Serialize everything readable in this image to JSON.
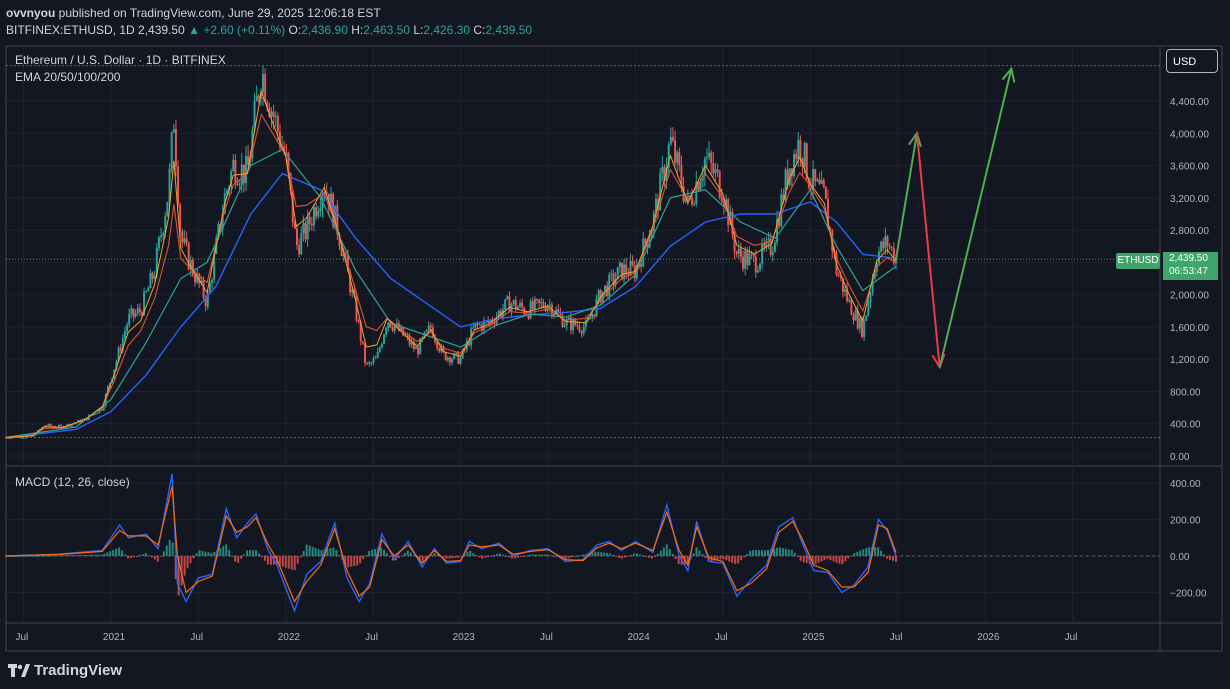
{
  "header": {
    "user": "ovvnyou",
    "published": " published on TradingView.com, June 29, 2025 12:06:18 EST",
    "symbol": "BITFINEX:ETHUSD, 1D",
    "last": "2,439.50",
    "change": "+2.60 (+0.11%)",
    "o_label": "O:",
    "o_val": "2,436.90",
    "h_label": "H:",
    "h_val": "2,463.50",
    "l_label": "L:",
    "l_val": "2,426.30",
    "c_label": "C:",
    "c_val": "2,439.50"
  },
  "currency_button": "USD",
  "ticker_tag": "ETHUSD",
  "price_tag": {
    "price": "2,439.50",
    "countdown": "06:53:47"
  },
  "logo": "TradingView",
  "colors": {
    "background": "#131722",
    "up": "#26a69a",
    "down": "#ef5350",
    "arrow_up": "#4caf50",
    "arrow_down": "#f23645",
    "ema20": "#f0a030",
    "ema50": "#e05038",
    "ema100": "#26a69a",
    "ema200": "#2962ff",
    "macd": "#2962ff",
    "signal": "#ff6d00"
  },
  "chart_data": [
    {
      "type": "line",
      "title": "Ethereum / U.S. Dollar · 1D · BITFINEX",
      "indicator_label": "EMA 20/50/100/200",
      "ylim": [
        0,
        4900
      ],
      "yticks": [
        0,
        400,
        800,
        1200,
        1600,
        2000,
        2400,
        2800,
        3200,
        3600,
        4000,
        4400
      ],
      "ytick_labels": [
        "0.00",
        "400.00",
        "800.00",
        "1,200.00",
        "1,600.00",
        "2,000.00",
        "2,400.00",
        "2,800.00",
        "3,200.00",
        "3,600.00",
        "4,000.00",
        "4,400.00"
      ],
      "x_ticks": [
        {
          "label": "Jul",
          "x": 2020.5
        },
        {
          "label": "2021",
          "x": 2021.0
        },
        {
          "label": "Jul",
          "x": 2021.5
        },
        {
          "label": "2022",
          "x": 2022.0
        },
        {
          "label": "Jul",
          "x": 2022.5
        },
        {
          "label": "2023",
          "x": 2023.0
        },
        {
          "label": "Jul",
          "x": 2023.5
        },
        {
          "label": "2024",
          "x": 2024.0
        },
        {
          "label": "Jul",
          "x": 2024.5
        },
        {
          "label": "2025",
          "x": 2025.0
        },
        {
          "label": "Jul",
          "x": 2025.5
        },
        {
          "label": "2026",
          "x": 2026.0
        },
        {
          "label": "Jul",
          "x": 2026.5
        }
      ],
      "xlim": [
        2020.4,
        2027.0
      ],
      "series_price": [
        [
          2020.4,
          230
        ],
        [
          2020.55,
          240
        ],
        [
          2020.62,
          380
        ],
        [
          2020.72,
          360
        ],
        [
          2020.85,
          450
        ],
        [
          2020.95,
          600
        ],
        [
          2021.02,
          1100
        ],
        [
          2021.1,
          1700
        ],
        [
          2021.17,
          1800
        ],
        [
          2021.25,
          2300
        ],
        [
          2021.33,
          3300
        ],
        [
          2021.36,
          4200
        ],
        [
          2021.4,
          2700
        ],
        [
          2021.45,
          2400
        ],
        [
          2021.55,
          1900
        ],
        [
          2021.58,
          2300
        ],
        [
          2021.65,
          3200
        ],
        [
          2021.7,
          3600
        ],
        [
          2021.78,
          3500
        ],
        [
          2021.86,
          4800
        ],
        [
          2021.92,
          4300
        ],
        [
          2022.0,
          3700
        ],
        [
          2022.06,
          2600
        ],
        [
          2022.12,
          2800
        ],
        [
          2022.22,
          3400
        ],
        [
          2022.3,
          2800
        ],
        [
          2022.4,
          1800
        ],
        [
          2022.46,
          1100
        ],
        [
          2022.52,
          1200
        ],
        [
          2022.58,
          1700
        ],
        [
          2022.67,
          1500
        ],
        [
          2022.75,
          1300
        ],
        [
          2022.83,
          1600
        ],
        [
          2022.9,
          1250
        ],
        [
          2023.0,
          1200
        ],
        [
          2023.08,
          1600
        ],
        [
          2023.16,
          1650
        ],
        [
          2023.28,
          1900
        ],
        [
          2023.38,
          1800
        ],
        [
          2023.5,
          1900
        ],
        [
          2023.6,
          1650
        ],
        [
          2023.72,
          1600
        ],
        [
          2023.8,
          2000
        ],
        [
          2023.92,
          2300
        ],
        [
          2024.0,
          2300
        ],
        [
          2024.1,
          2900
        ],
        [
          2024.2,
          3900
        ],
        [
          2024.3,
          3100
        ],
        [
          2024.4,
          3700
        ],
        [
          2024.5,
          3300
        ],
        [
          2024.58,
          2500
        ],
        [
          2024.68,
          2400
        ],
        [
          2024.78,
          2600
        ],
        [
          2024.88,
          3600
        ],
        [
          2024.94,
          3900
        ],
        [
          2025.0,
          3400
        ],
        [
          2025.08,
          3200
        ],
        [
          2025.15,
          2300
        ],
        [
          2025.22,
          1900
        ],
        [
          2025.3,
          1550
        ],
        [
          2025.38,
          2500
        ],
        [
          2025.44,
          2650
        ],
        [
          2025.49,
          2440
        ]
      ],
      "ema200": [
        [
          2020.4,
          230
        ],
        [
          2020.8,
          330
        ],
        [
          2021.0,
          550
        ],
        [
          2021.2,
          1000
        ],
        [
          2021.4,
          1600
        ],
        [
          2021.6,
          2100
        ],
        [
          2021.8,
          3000
        ],
        [
          2021.98,
          3500
        ],
        [
          2022.2,
          3300
        ],
        [
          2022.4,
          2700
        ],
        [
          2022.6,
          2200
        ],
        [
          2022.8,
          1900
        ],
        [
          2023.0,
          1600
        ],
        [
          2023.2,
          1700
        ],
        [
          2023.4,
          1750
        ],
        [
          2023.6,
          1780
        ],
        [
          2023.8,
          1830
        ],
        [
          2024.0,
          2100
        ],
        [
          2024.2,
          2600
        ],
        [
          2024.4,
          2900
        ],
        [
          2024.6,
          3000
        ],
        [
          2024.8,
          3000
        ],
        [
          2025.0,
          3150
        ],
        [
          2025.15,
          2900
        ],
        [
          2025.3,
          2500
        ],
        [
          2025.49,
          2450
        ]
      ],
      "ema100": [
        [
          2020.4,
          230
        ],
        [
          2020.8,
          360
        ],
        [
          2021.0,
          700
        ],
        [
          2021.2,
          1400
        ],
        [
          2021.4,
          2200
        ],
        [
          2021.55,
          2400
        ],
        [
          2021.8,
          3600
        ],
        [
          2021.98,
          3800
        ],
        [
          2022.2,
          3200
        ],
        [
          2022.4,
          2300
        ],
        [
          2022.6,
          1650
        ],
        [
          2022.8,
          1500
        ],
        [
          2023.0,
          1350
        ],
        [
          2023.2,
          1620
        ],
        [
          2023.4,
          1760
        ],
        [
          2023.6,
          1720
        ],
        [
          2023.8,
          1870
        ],
        [
          2024.0,
          2250
        ],
        [
          2024.2,
          3200
        ],
        [
          2024.4,
          3300
        ],
        [
          2024.6,
          2900
        ],
        [
          2024.8,
          2700
        ],
        [
          2025.0,
          3300
        ],
        [
          2025.15,
          2600
        ],
        [
          2025.3,
          2050
        ],
        [
          2025.49,
          2350
        ]
      ],
      "annotations": {
        "arrow_up_1": {
          "from": [
            2025.49,
            2440
          ],
          "to": [
            2025.61,
            4000
          ]
        },
        "arrow_down": {
          "from": [
            2025.61,
            4000
          ],
          "to": [
            2025.74,
            1100
          ]
        },
        "arrow_up_2": {
          "from": [
            2025.74,
            1100
          ],
          "to": [
            2026.15,
            4800
          ]
        }
      }
    },
    {
      "type": "line",
      "title": "MACD (12, 26, close)",
      "ylim": [
        -350,
        480
      ],
      "yticks": [
        -200,
        0,
        200,
        400
      ],
      "ytick_labels": [
        "−200.00",
        "0.00",
        "200.00",
        "400.00"
      ],
      "macd": [
        [
          2020.4,
          0
        ],
        [
          2020.7,
          10
        ],
        [
          2020.95,
          30
        ],
        [
          2021.05,
          170
        ],
        [
          2021.1,
          100
        ],
        [
          2021.2,
          120
        ],
        [
          2021.27,
          40
        ],
        [
          2021.35,
          450
        ],
        [
          2021.38,
          -150
        ],
        [
          2021.43,
          -250
        ],
        [
          2021.5,
          -120
        ],
        [
          2021.58,
          -100
        ],
        [
          2021.66,
          260
        ],
        [
          2021.72,
          100
        ],
        [
          2021.78,
          180
        ],
        [
          2021.83,
          230
        ],
        [
          2021.9,
          30
        ],
        [
          2021.95,
          -50
        ],
        [
          2022.05,
          -300
        ],
        [
          2022.12,
          -100
        ],
        [
          2022.2,
          -30
        ],
        [
          2022.28,
          180
        ],
        [
          2022.35,
          -120
        ],
        [
          2022.42,
          -250
        ],
        [
          2022.48,
          -150
        ],
        [
          2022.55,
          120
        ],
        [
          2022.62,
          -20
        ],
        [
          2022.7,
          80
        ],
        [
          2022.78,
          -60
        ],
        [
          2022.85,
          40
        ],
        [
          2022.92,
          -40
        ],
        [
          2023.0,
          -30
        ],
        [
          2023.05,
          80
        ],
        [
          2023.12,
          40
        ],
        [
          2023.22,
          70
        ],
        [
          2023.3,
          0
        ],
        [
          2023.4,
          30
        ],
        [
          2023.5,
          40
        ],
        [
          2023.6,
          -30
        ],
        [
          2023.7,
          -20
        ],
        [
          2023.78,
          60
        ],
        [
          2023.85,
          80
        ],
        [
          2023.92,
          30
        ],
        [
          2024.0,
          80
        ],
        [
          2024.1,
          20
        ],
        [
          2024.18,
          280
        ],
        [
          2024.25,
          0
        ],
        [
          2024.3,
          -80
        ],
        [
          2024.35,
          190
        ],
        [
          2024.42,
          -30
        ],
        [
          2024.5,
          -40
        ],
        [
          2024.58,
          -220
        ],
        [
          2024.66,
          -130
        ],
        [
          2024.75,
          -50
        ],
        [
          2024.82,
          160
        ],
        [
          2024.9,
          210
        ],
        [
          2024.95,
          80
        ],
        [
          2025.02,
          -80
        ],
        [
          2025.1,
          -90
        ],
        [
          2025.18,
          -200
        ],
        [
          2025.25,
          -160
        ],
        [
          2025.33,
          -60
        ],
        [
          2025.39,
          200
        ],
        [
          2025.44,
          140
        ],
        [
          2025.49,
          0
        ]
      ],
      "signal": [
        [
          2020.4,
          0
        ],
        [
          2020.7,
          8
        ],
        [
          2020.95,
          25
        ],
        [
          2021.05,
          140
        ],
        [
          2021.1,
          110
        ],
        [
          2021.2,
          110
        ],
        [
          2021.27,
          60
        ],
        [
          2021.35,
          380
        ],
        [
          2021.38,
          0
        ],
        [
          2021.43,
          -200
        ],
        [
          2021.5,
          -140
        ],
        [
          2021.58,
          -110
        ],
        [
          2021.66,
          220
        ],
        [
          2021.72,
          130
        ],
        [
          2021.78,
          160
        ],
        [
          2021.83,
          210
        ],
        [
          2021.9,
          60
        ],
        [
          2021.95,
          -20
        ],
        [
          2022.05,
          -250
        ],
        [
          2022.12,
          -140
        ],
        [
          2022.2,
          -50
        ],
        [
          2022.28,
          150
        ],
        [
          2022.35,
          -80
        ],
        [
          2022.42,
          -220
        ],
        [
          2022.48,
          -170
        ],
        [
          2022.55,
          90
        ],
        [
          2022.62,
          0
        ],
        [
          2022.7,
          60
        ],
        [
          2022.78,
          -40
        ],
        [
          2022.85,
          30
        ],
        [
          2022.92,
          -30
        ],
        [
          2023.0,
          -25
        ],
        [
          2023.05,
          60
        ],
        [
          2023.12,
          50
        ],
        [
          2023.22,
          60
        ],
        [
          2023.3,
          10
        ],
        [
          2023.4,
          25
        ],
        [
          2023.5,
          35
        ],
        [
          2023.6,
          -20
        ],
        [
          2023.7,
          -25
        ],
        [
          2023.78,
          45
        ],
        [
          2023.85,
          70
        ],
        [
          2023.92,
          40
        ],
        [
          2024.0,
          70
        ],
        [
          2024.1,
          30
        ],
        [
          2024.18,
          240
        ],
        [
          2024.25,
          30
        ],
        [
          2024.3,
          -50
        ],
        [
          2024.35,
          160
        ],
        [
          2024.42,
          -10
        ],
        [
          2024.5,
          -30
        ],
        [
          2024.58,
          -190
        ],
        [
          2024.66,
          -150
        ],
        [
          2024.75,
          -70
        ],
        [
          2024.82,
          130
        ],
        [
          2024.9,
          190
        ],
        [
          2024.95,
          100
        ],
        [
          2025.02,
          -50
        ],
        [
          2025.1,
          -80
        ],
        [
          2025.18,
          -170
        ],
        [
          2025.25,
          -170
        ],
        [
          2025.33,
          -90
        ],
        [
          2025.39,
          170
        ],
        [
          2025.44,
          150
        ],
        [
          2025.49,
          20
        ]
      ]
    }
  ]
}
